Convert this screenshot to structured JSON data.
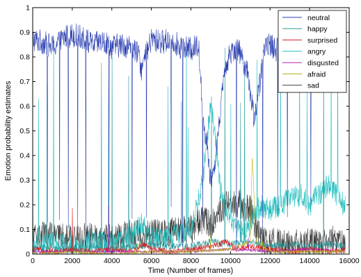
{
  "chart_data": {
    "type": "line",
    "title": "",
    "xlabel": "Time (Number of frames)",
    "ylabel": "Emotion probability estimates",
    "xlim": [
      0,
      16000
    ],
    "ylim": [
      0,
      1
    ],
    "xticks": [
      "0",
      "2000",
      "4000",
      "6000",
      "8000",
      "10000",
      "12000",
      "14000",
      "16000"
    ],
    "yticks": [
      "0",
      "0.1",
      "0.2",
      "0.3",
      "0.4",
      "0.5",
      "0.6",
      "0.7",
      "0.8",
      "0.9",
      "1"
    ],
    "grid": false,
    "legend_position": "top-right",
    "x_max_data": 15800,
    "series": [
      {
        "name": "neutral",
        "color": "#2b3fb0",
        "x": [
          0,
          500,
          1000,
          1400,
          1600,
          2000,
          2500,
          3000,
          3500,
          4000,
          4500,
          5000,
          5400,
          5500,
          6000,
          6500,
          7000,
          7500,
          8000,
          8400,
          8600,
          8800,
          9000,
          9200,
          9500,
          9800,
          10000,
          10300,
          10600,
          10900,
          11200,
          11500,
          11800,
          12000,
          12500,
          13000,
          13500,
          14000,
          14500,
          15000,
          15500,
          15800
        ],
        "values": [
          0.87,
          0.86,
          0.84,
          0.86,
          0.88,
          0.89,
          0.88,
          0.85,
          0.86,
          0.84,
          0.85,
          0.84,
          0.8,
          0.75,
          0.87,
          0.86,
          0.87,
          0.84,
          0.83,
          0.85,
          0.55,
          0.45,
          0.3,
          0.35,
          0.6,
          0.78,
          0.82,
          0.84,
          0.8,
          0.72,
          0.55,
          0.7,
          0.86,
          0.85,
          0.82,
          0.8,
          0.78,
          0.75,
          0.72,
          0.7,
          0.75,
          0.78
        ]
      },
      {
        "name": "happy",
        "color": "#2a9a9a",
        "x": [
          0,
          1000,
          2000,
          3000,
          4000,
          5000,
          6000,
          7000,
          8000,
          9000,
          10000,
          11000,
          12000,
          13000,
          14000,
          15000,
          15800
        ],
        "values": [
          0.02,
          0.03,
          0.02,
          0.03,
          0.02,
          0.03,
          0.04,
          0.03,
          0.03,
          0.05,
          0.04,
          0.05,
          0.03,
          0.04,
          0.03,
          0.04,
          0.03
        ]
      },
      {
        "name": "surprised",
        "color": "#d81e1e",
        "x": [
          0,
          1000,
          2000,
          3000,
          4000,
          5000,
          5600,
          6000,
          7000,
          8000,
          9000,
          9800,
          10300,
          11000,
          12000,
          13000,
          14000,
          15000,
          15800
        ],
        "values": [
          0.02,
          0.01,
          0.02,
          0.01,
          0.02,
          0.01,
          0.04,
          0.02,
          0.01,
          0.02,
          0.03,
          0.05,
          0.02,
          0.03,
          0.02,
          0.01,
          0.02,
          0.01,
          0.02
        ]
      },
      {
        "name": "angry",
        "color": "#1fbdbd",
        "x": [
          0,
          1000,
          2000,
          3000,
          4000,
          5000,
          5500,
          6000,
          7000,
          8000,
          8500,
          8800,
          9000,
          9200,
          9500,
          10000,
          10500,
          11000,
          11500,
          12000,
          12500,
          13000,
          13500,
          14000,
          14500,
          15000,
          15500,
          15800
        ],
        "values": [
          0.03,
          0.04,
          0.03,
          0.05,
          0.04,
          0.07,
          0.12,
          0.06,
          0.07,
          0.1,
          0.25,
          0.45,
          0.6,
          0.5,
          0.25,
          0.15,
          0.08,
          0.12,
          0.2,
          0.18,
          0.2,
          0.22,
          0.24,
          0.2,
          0.25,
          0.28,
          0.22,
          0.2
        ]
      },
      {
        "name": "disgusted",
        "color": "#b324b3",
        "x": [
          0,
          2000,
          4000,
          6000,
          8000,
          10000,
          12000,
          14000,
          15800
        ],
        "values": [
          0.01,
          0.01,
          0.01,
          0.01,
          0.01,
          0.02,
          0.01,
          0.02,
          0.01
        ]
      },
      {
        "name": "afraid",
        "color": "#b8b21e",
        "x": [
          0,
          2000,
          4000,
          6000,
          8000,
          10000,
          11000,
          11100,
          11300,
          12000,
          14000,
          15800
        ],
        "values": [
          0.0,
          0.01,
          0.0,
          0.01,
          0.01,
          0.02,
          0.05,
          0.4,
          0.05,
          0.01,
          0.01,
          0.01
        ]
      },
      {
        "name": "sad",
        "color": "#3a3a3a",
        "x": [
          0,
          1000,
          2000,
          3000,
          4000,
          5000,
          6000,
          7000,
          8000,
          8500,
          9000,
          9500,
          10000,
          10500,
          11000,
          11500,
          12000,
          12500,
          13000,
          13500,
          14000,
          14500,
          15000,
          15500,
          15800
        ],
        "values": [
          0.08,
          0.07,
          0.06,
          0.07,
          0.06,
          0.08,
          0.08,
          0.09,
          0.1,
          0.14,
          0.12,
          0.18,
          0.22,
          0.2,
          0.18,
          0.06,
          0.05,
          0.04,
          0.04,
          0.04,
          0.05,
          0.04,
          0.04,
          0.05,
          0.04
        ]
      }
    ]
  }
}
